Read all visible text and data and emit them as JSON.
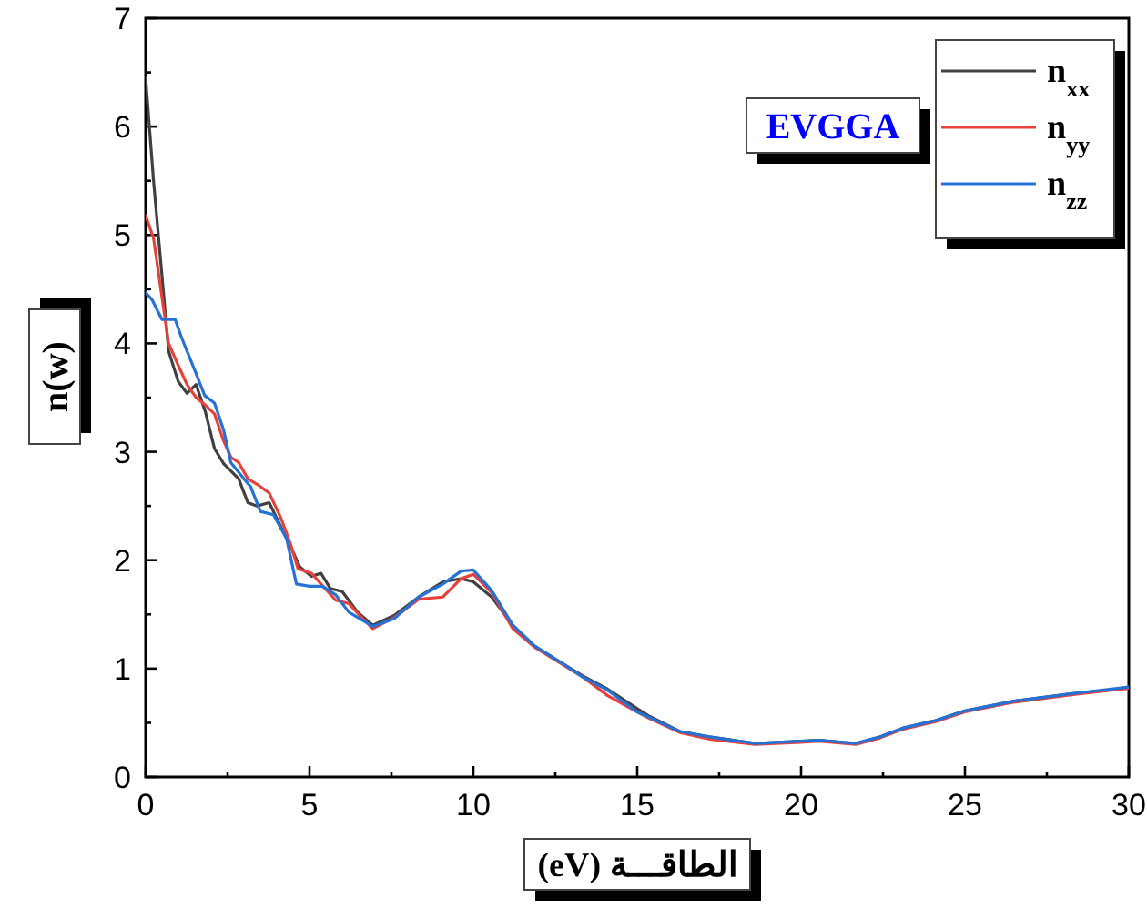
{
  "chart_data": {
    "type": "line",
    "xlabel": "الطاقـــة (eV)",
    "ylabel": "n(w)",
    "annotations": [
      "EVGGA"
    ],
    "legend": "top right",
    "xlim": [
      0,
      30
    ],
    "ylim": [
      0,
      7
    ],
    "xticks": [
      0,
      {
        "value": 2.5,
        "label": null
      },
      5,
      {
        "value": 7.5,
        "label": null
      },
      10,
      {
        "value": 12.5,
        "label": null
      },
      15,
      {
        "value": 17.5,
        "label": null
      },
      20,
      {
        "value": 22.5,
        "label": null
      },
      25,
      {
        "value": 27.5,
        "label": null
      },
      30
    ],
    "yticks": [
      0,
      {
        "value": 0.5,
        "label": null
      },
      1,
      {
        "value": 1.5,
        "label": null
      },
      2,
      {
        "value": 2.5,
        "label": null
      },
      3,
      {
        "value": 3.5,
        "label": null
      },
      4,
      {
        "value": 4.5,
        "label": null
      },
      5,
      {
        "value": 5.5,
        "label": null
      },
      6,
      {
        "value": 6.5,
        "label": null
      },
      7
    ],
    "series": [
      {
        "name": "n$_{xx}$",
        "color": "#404040",
        "x": [
          0,
          0.24,
          0.52,
          0.7,
          0.99,
          1.26,
          1.54,
          1.82,
          2.1,
          2.38,
          2.84,
          3.12,
          3.4,
          3.77,
          4.14,
          4.42,
          4.7,
          5.06,
          5.35,
          5.63,
          6.0,
          6.47,
          6.93,
          7.58,
          8.33,
          9.07,
          9.63,
          10.0,
          10.56,
          11.2,
          11.86,
          12.6,
          13.35,
          14.1,
          15.0,
          15.37,
          16.3,
          17.2,
          18.6,
          20.0,
          20.55,
          21.67,
          22.4,
          23.1,
          24.1,
          25.0,
          26.5,
          28.3,
          30.0
        ],
        "values": [
          6.45,
          5.5,
          4.55,
          3.93,
          3.65,
          3.54,
          3.62,
          3.37,
          3.03,
          2.89,
          2.75,
          2.53,
          2.5,
          2.53,
          2.3,
          2.13,
          1.94,
          1.85,
          1.88,
          1.74,
          1.71,
          1.52,
          1.4,
          1.49,
          1.66,
          1.8,
          1.83,
          1.8,
          1.66,
          1.4,
          1.21,
          1.07,
          0.93,
          0.81,
          0.63,
          0.56,
          0.42,
          0.37,
          0.31,
          0.33,
          0.34,
          0.31,
          0.37,
          0.45,
          0.52,
          0.61,
          0.7,
          0.77,
          0.82
        ]
      },
      {
        "name": "n$_{yy}$",
        "color": "#e8413c",
        "x": [
          0,
          0.24,
          0.52,
          0.7,
          0.99,
          1.26,
          1.54,
          1.82,
          2.1,
          2.38,
          2.6,
          2.84,
          3.12,
          3.4,
          3.77,
          4.14,
          4.42,
          4.65,
          5.06,
          5.35,
          5.8,
          6.2,
          6.5,
          6.93,
          7.58,
          8.33,
          9.07,
          9.63,
          10.0,
          10.56,
          11.2,
          11.86,
          12.6,
          13.35,
          14.1,
          15.0,
          15.37,
          16.3,
          17.2,
          18.6,
          20.0,
          20.55,
          21.67,
          22.4,
          23.1,
          24.1,
          25.0,
          26.5,
          28.3,
          30.0
        ],
        "values": [
          5.18,
          4.97,
          4.38,
          4.0,
          3.8,
          3.62,
          3.5,
          3.43,
          3.35,
          3.1,
          2.95,
          2.9,
          2.75,
          2.7,
          2.62,
          2.38,
          2.15,
          1.92,
          1.88,
          1.78,
          1.63,
          1.6,
          1.5,
          1.37,
          1.47,
          1.64,
          1.66,
          1.83,
          1.87,
          1.7,
          1.37,
          1.2,
          1.06,
          0.92,
          0.75,
          0.6,
          0.54,
          0.41,
          0.35,
          0.3,
          0.32,
          0.33,
          0.3,
          0.36,
          0.44,
          0.51,
          0.6,
          0.69,
          0.76,
          0.82
        ]
      },
      {
        "name": "n$_{zz}$",
        "color": "#2472d6",
        "x": [
          0,
          0.2,
          0.5,
          0.9,
          1.1,
          1.5,
          1.8,
          2.1,
          2.38,
          2.6,
          3.0,
          3.2,
          3.5,
          3.9,
          4.3,
          4.6,
          5.0,
          5.4,
          5.8,
          6.2,
          6.93,
          7.58,
          8.33,
          9.07,
          9.63,
          10.0,
          10.56,
          11.2,
          11.86,
          12.6,
          13.35,
          14.1,
          15.0,
          15.37,
          16.3,
          17.2,
          18.6,
          20.0,
          20.55,
          21.67,
          22.4,
          23.1,
          24.1,
          25.0,
          26.5,
          28.3,
          30.0
        ],
        "values": [
          4.47,
          4.4,
          4.22,
          4.22,
          4.05,
          3.75,
          3.52,
          3.45,
          3.2,
          2.9,
          2.75,
          2.68,
          2.45,
          2.42,
          2.2,
          1.78,
          1.76,
          1.76,
          1.68,
          1.52,
          1.39,
          1.46,
          1.66,
          1.78,
          1.9,
          1.91,
          1.72,
          1.4,
          1.21,
          1.07,
          0.92,
          0.8,
          0.6,
          0.55,
          0.42,
          0.37,
          0.31,
          0.33,
          0.34,
          0.31,
          0.37,
          0.45,
          0.52,
          0.61,
          0.7,
          0.77,
          0.83
        ]
      }
    ]
  }
}
